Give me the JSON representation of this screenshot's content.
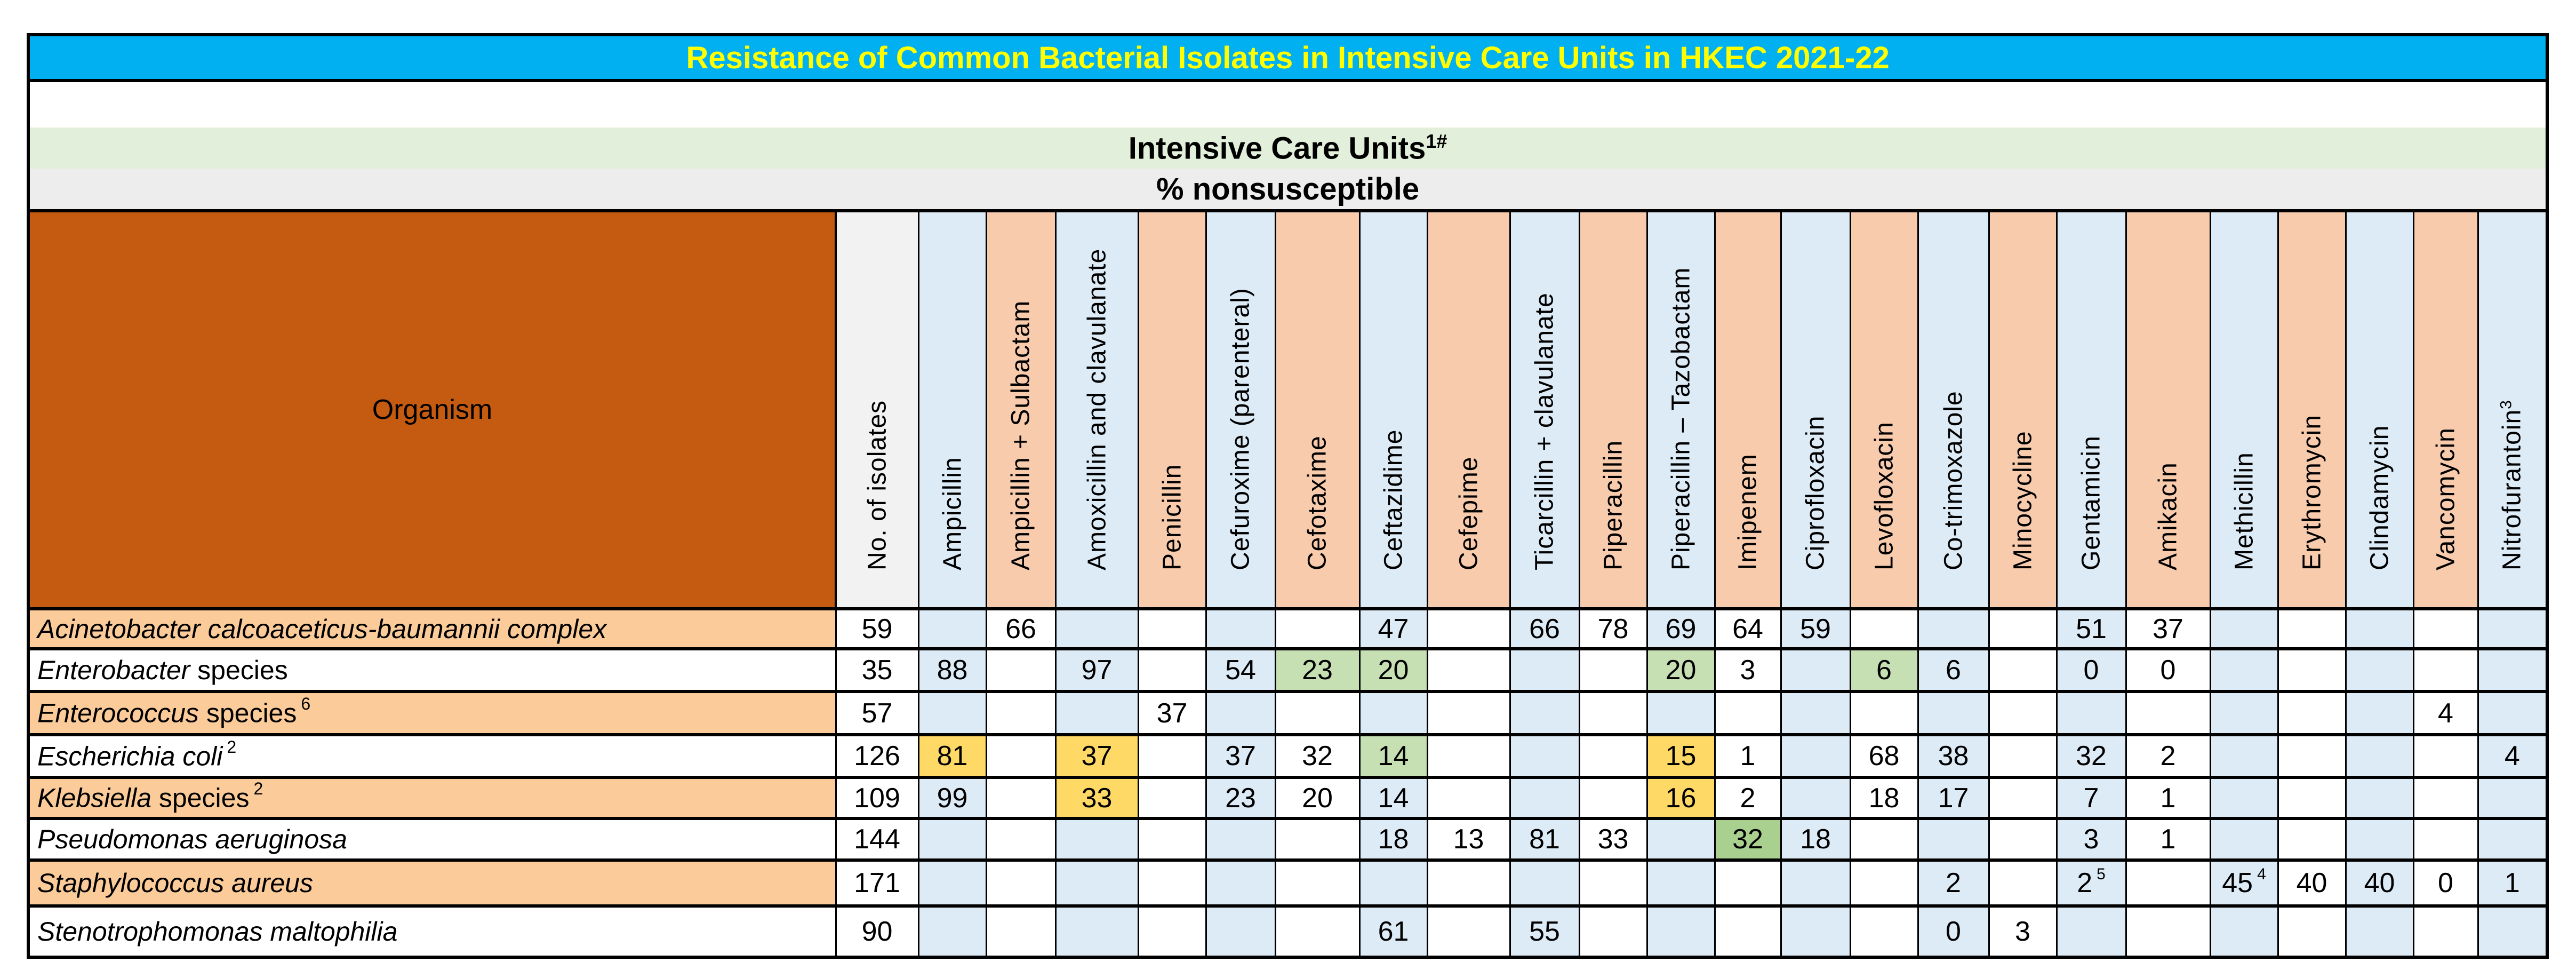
{
  "title": "Resistance of Common Bacterial Isolates in Intensive Care Units in HKEC 2021-22",
  "section": {
    "label": "Intensive Care Units",
    "label_superscript": "1#",
    "subtitle": "% nonsusceptible"
  },
  "colors": {
    "title_bg": "#00b0f0",
    "title_text": "#ffff00",
    "organism_header_bg": "#c55a11",
    "row_peach": "#fbcb99",
    "col_blue": "#ddebf7",
    "col_peach": "#f8cbad",
    "highlight_yellow": "#ffd966",
    "highlight_green": "#c6e0b4",
    "highlight_green_dark": "#a9d08e"
  },
  "table": {
    "organism_header": "Organism",
    "columns": [
      {
        "label": "No. of isolates",
        "sup": ""
      },
      {
        "label": "Ampicillin",
        "sup": ""
      },
      {
        "label": "Ampicillin + Sulbactam",
        "sup": ""
      },
      {
        "label": "Amoxicillin and clavulanate",
        "sup": ""
      },
      {
        "label": "Penicillin",
        "sup": ""
      },
      {
        "label": "Cefuroxime (parenteral)",
        "sup": ""
      },
      {
        "label": "Cefotaxime",
        "sup": ""
      },
      {
        "label": "Ceftazidime",
        "sup": ""
      },
      {
        "label": "Cefepime",
        "sup": ""
      },
      {
        "label": "Ticarcillin + clavulanate",
        "sup": ""
      },
      {
        "label": "Piperacillin",
        "sup": ""
      },
      {
        "label": "Piperacillin – Tazobactam",
        "sup": ""
      },
      {
        "label": "Imipenem",
        "sup": ""
      },
      {
        "label": "Ciprofloxacin",
        "sup": ""
      },
      {
        "label": "Levofloxacin",
        "sup": ""
      },
      {
        "label": "Co-trimoxazole",
        "sup": ""
      },
      {
        "label": "Minocycline",
        "sup": ""
      },
      {
        "label": "Gentamicin",
        "sup": ""
      },
      {
        "label": "Amikacin",
        "sup": ""
      },
      {
        "label": "Methicillin",
        "sup": ""
      },
      {
        "label": "Erythromycin",
        "sup": ""
      },
      {
        "label": "Clindamycin",
        "sup": ""
      },
      {
        "label": "Vancomycin",
        "sup": ""
      },
      {
        "label": "Nitrofurantoin",
        "sup": "3"
      }
    ],
    "rows": [
      {
        "organism_italic": "Acinetobacter calcoaceticus-baumannii complex",
        "organism_plain": "",
        "sup": "",
        "values": [
          "59",
          "",
          "66",
          "",
          "",
          "",
          "",
          "47",
          "",
          "66",
          "78",
          "69",
          "64",
          "59",
          "",
          "",
          "",
          "51",
          "37",
          "",
          "",
          "",
          "",
          ""
        ]
      },
      {
        "organism_italic": "Enterobacter",
        "organism_plain": " species",
        "sup": "",
        "values": [
          "35",
          "88",
          "",
          "97",
          "",
          "54",
          "23",
          "20",
          "",
          "",
          "",
          "20",
          "3",
          "",
          "6",
          "6",
          "",
          "0",
          "0",
          "",
          "",
          "",
          "",
          ""
        ]
      },
      {
        "organism_italic": "Enterococcus",
        "organism_plain": " species",
        "sup": "6",
        "values": [
          "57",
          "",
          "",
          "",
          "37",
          "",
          "",
          "",
          "",
          "",
          "",
          "",
          "",
          "",
          "",
          "",
          "",
          "",
          "",
          "",
          "",
          "",
          "4",
          ""
        ]
      },
      {
        "organism_italic": "Escherichia coli",
        "organism_plain": "",
        "sup": "2",
        "values": [
          "126",
          "81",
          "",
          "37",
          "",
          "37",
          "32",
          "14",
          "",
          "",
          "",
          "15",
          "1",
          "",
          "68",
          "38",
          "",
          "32",
          "2",
          "",
          "",
          "",
          "",
          "4"
        ]
      },
      {
        "organism_italic": "Klebsiella",
        "organism_plain": " species",
        "sup": "2",
        "values": [
          "109",
          "99",
          "",
          "33",
          "",
          "23",
          "20",
          "14",
          "",
          "",
          "",
          "16",
          "2",
          "",
          "18",
          "17",
          "",
          "7",
          "1",
          "",
          "",
          "",
          "",
          ""
        ]
      },
      {
        "organism_italic": "Pseudomonas aeruginosa",
        "organism_plain": "",
        "sup": "",
        "values": [
          "144",
          "",
          "",
          "",
          "",
          "",
          "",
          "18",
          "13",
          "81",
          "33",
          "",
          "32",
          "18",
          "",
          "",
          "",
          "3",
          "1",
          "",
          "",
          "",
          "",
          ""
        ]
      },
      {
        "organism_italic": "Staphylococcus aureus",
        "organism_plain": "",
        "sup": "",
        "values": [
          "171",
          "",
          "",
          "",
          "",
          "",
          "",
          "",
          "",
          "",
          "",
          "",
          "",
          "",
          "",
          "2",
          "",
          "2",
          "",
          "45",
          "40",
          "40",
          "0",
          "1"
        ],
        "value_sups": {
          "17": "5",
          "19": "4"
        }
      },
      {
        "organism_italic": "Stenotrophomonas maltophilia",
        "organism_plain": "",
        "sup": "",
        "values": [
          "90",
          "",
          "",
          "",
          "",
          "",
          "",
          "61",
          "",
          "55",
          "",
          "",
          "",
          "",
          "",
          "0",
          "3",
          "",
          "",
          "",
          "",
          "",
          "",
          ""
        ]
      }
    ]
  }
}
